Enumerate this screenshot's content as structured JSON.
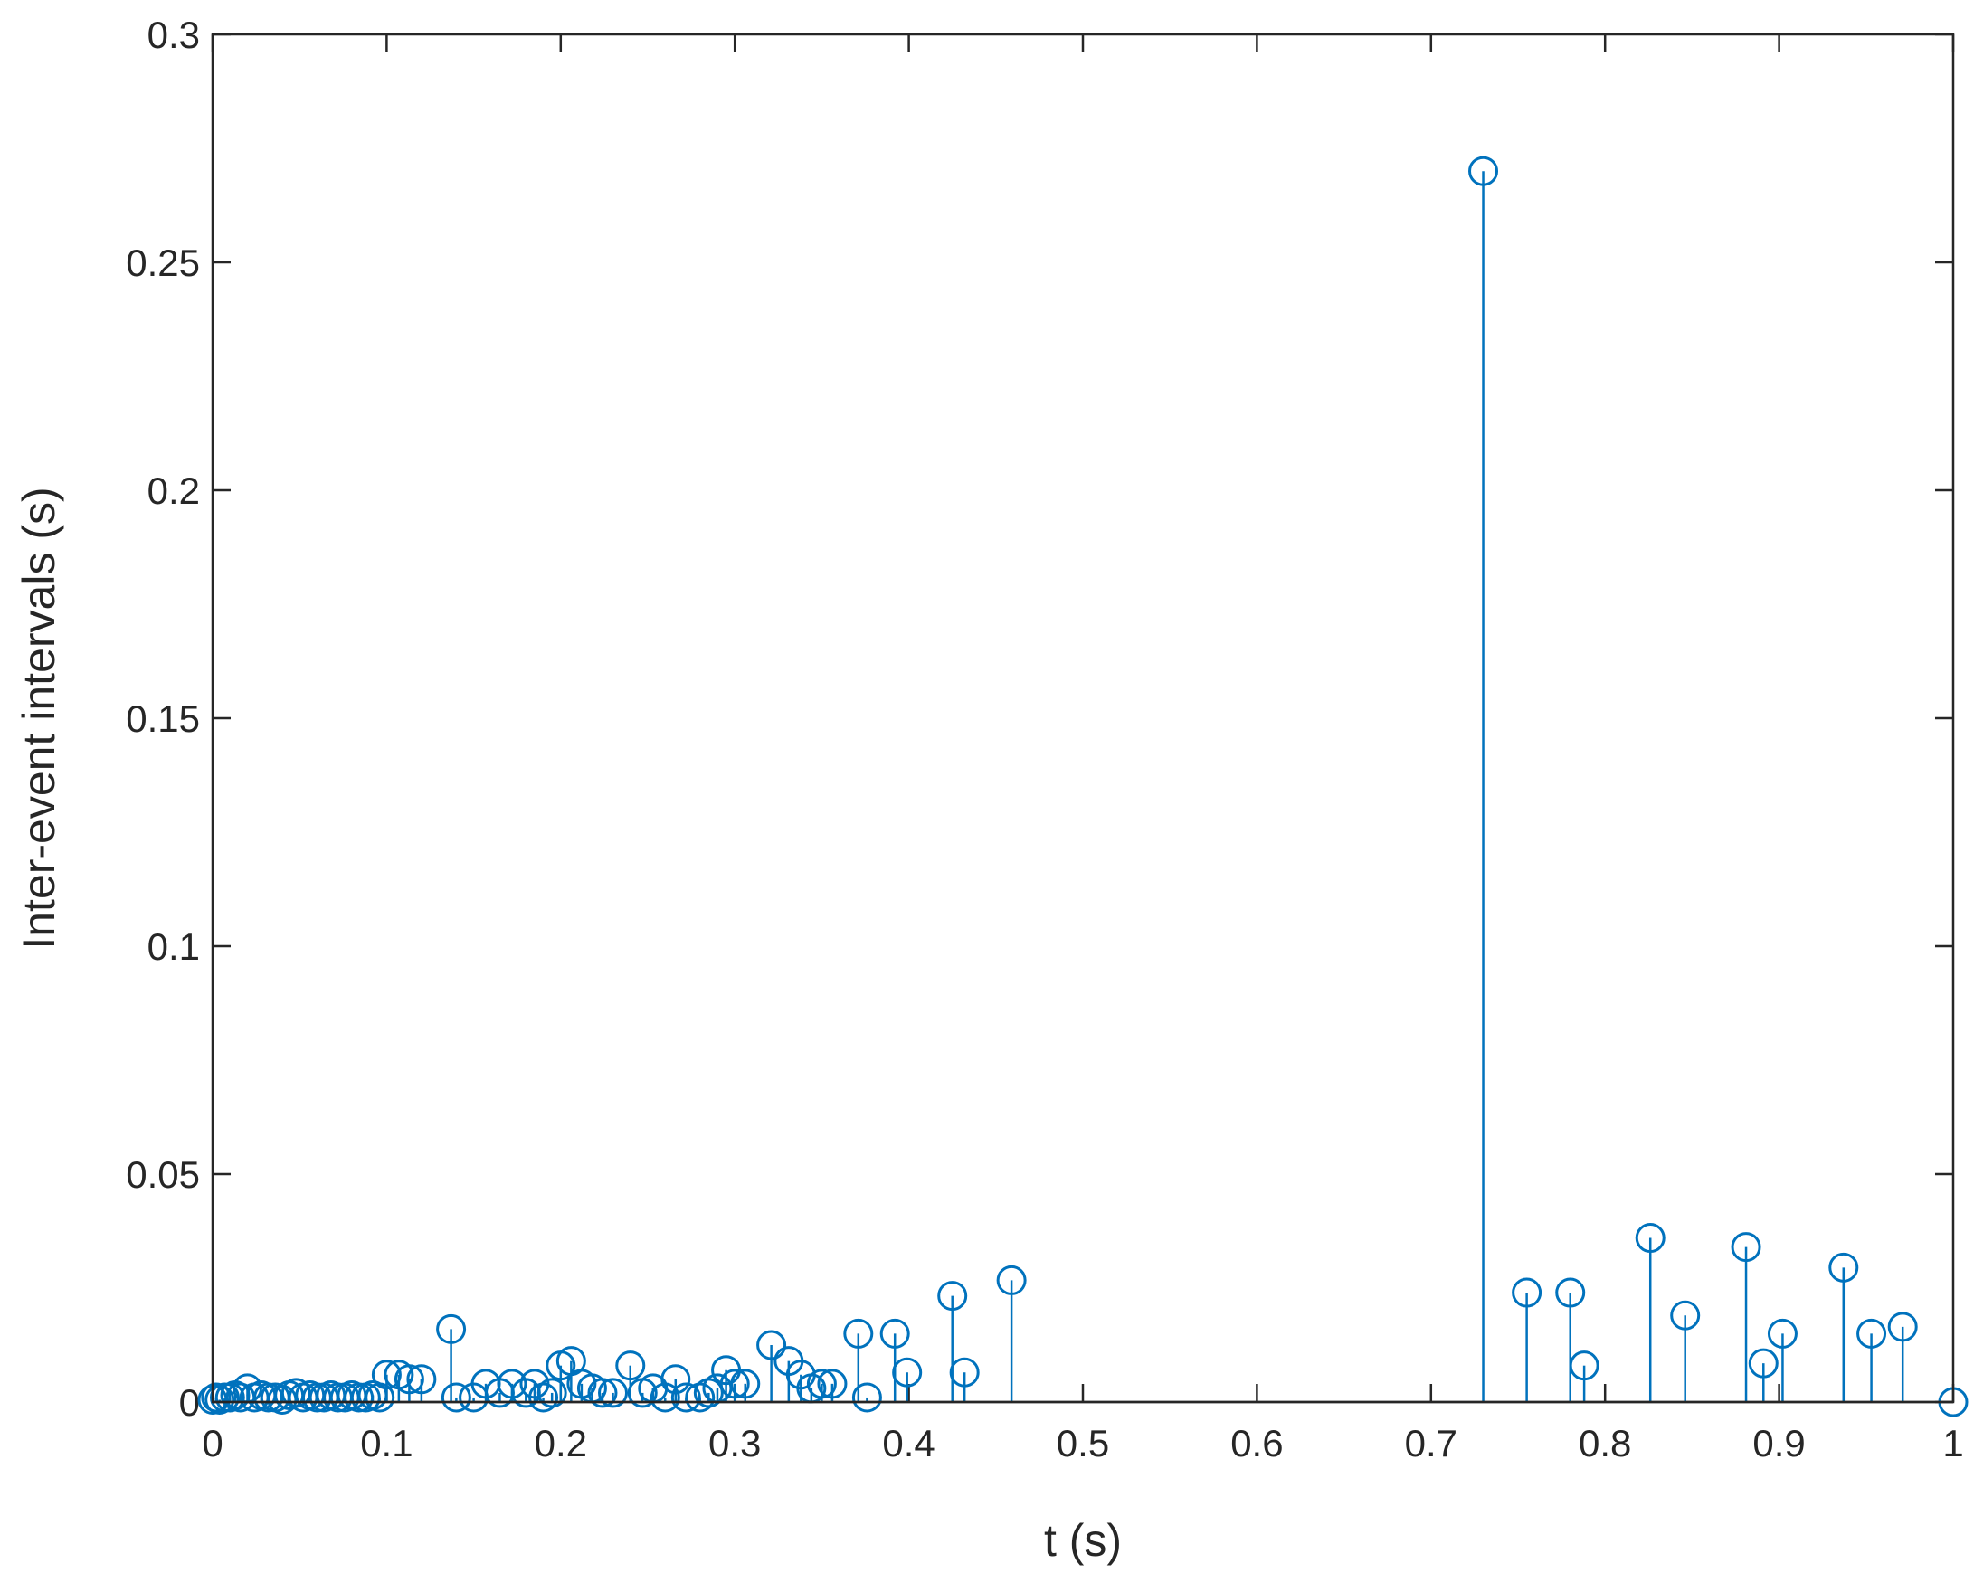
{
  "chart_data": {
    "type": "stem",
    "xlabel": "t (s)",
    "ylabel": "Inter-event intervals (s)",
    "color": "#0072bd",
    "xlim": [
      0,
      1
    ],
    "xticks": [
      0,
      0.1,
      0.2,
      0.3,
      0.4,
      0.5,
      0.6,
      0.7,
      0.8,
      0.9,
      1
    ],
    "ylim": [
      0,
      0.3
    ],
    "yticks": [
      0,
      0.05,
      0.1,
      0.15,
      0.2,
      0.25,
      0.3
    ],
    "x": [
      0,
      0.002,
      0.004,
      0.007,
      0.01,
      0.013,
      0.016,
      0.02,
      0.024,
      0.028,
      0.032,
      0.036,
      0.04,
      0.044,
      0.048,
      0.052,
      0.056,
      0.06,
      0.064,
      0.068,
      0.072,
      0.076,
      0.08,
      0.084,
      0.088,
      0.092,
      0.096,
      0.1,
      0.107,
      0.113,
      0.12,
      0.137,
      0.14,
      0.15,
      0.157,
      0.165,
      0.172,
      0.18,
      0.185,
      0.19,
      0.195,
      0.2,
      0.206,
      0.212,
      0.218,
      0.224,
      0.23,
      0.24,
      0.247,
      0.253,
      0.26,
      0.266,
      0.272,
      0.28,
      0.285,
      0.29,
      0.295,
      0.3,
      0.306,
      0.321,
      0.331,
      0.338,
      0.344,
      0.35,
      0.356,
      0.371,
      0.376,
      0.392,
      0.399,
      0.425,
      0.432,
      0.459,
      0.73,
      0.755,
      0.78,
      0.788,
      0.826,
      0.846,
      0.881,
      0.891,
      0.902,
      0.937,
      0.953,
      0.971,
      1
    ],
    "values": [
      0.0005,
      0.001,
      0.0005,
      0.001,
      0.001,
      0.0015,
      0.001,
      0.003,
      0.001,
      0.0015,
      0.001,
      0.001,
      0.0005,
      0.0015,
      0.002,
      0.001,
      0.0015,
      0.001,
      0.001,
      0.0015,
      0.001,
      0.001,
      0.0015,
      0.001,
      0.001,
      0.0015,
      0.001,
      0.006,
      0.006,
      0.005,
      0.005,
      0.016,
      0.001,
      0.001,
      0.004,
      0.002,
      0.004,
      0.002,
      0.004,
      0.001,
      0.002,
      0.008,
      0.009,
      0.004,
      0.003,
      0.002,
      0.002,
      0.008,
      0.002,
      0.003,
      0.001,
      0.005,
      0.001,
      0.001,
      0.002,
      0.003,
      0.007,
      0.004,
      0.004,
      0.0125,
      0.009,
      0.006,
      0.003,
      0.004,
      0.004,
      0.015,
      0.001,
      0.015,
      0.0065,
      0.0233,
      0.0065,
      0.0267,
      0.27,
      0.024,
      0.024,
      0.008,
      0.036,
      0.019,
      0.034,
      0.0085,
      0.015,
      0.0295,
      0.015,
      0.0165,
      0
    ]
  }
}
